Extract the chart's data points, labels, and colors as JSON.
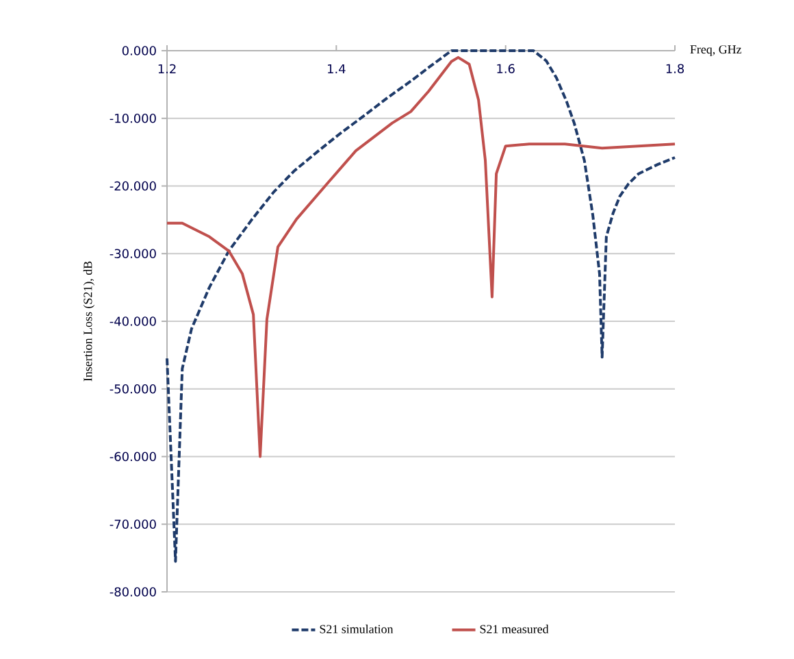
{
  "chart_data": {
    "type": "line",
    "xlabel": "Freq, GHz",
    "ylabel": "Insertion Loss (S21), dB",
    "xlim": [
      1.2,
      1.8
    ],
    "ylim": [
      -80,
      0
    ],
    "xticks": [
      1.2,
      1.4,
      1.6,
      1.8
    ],
    "yticks": [
      {
        "value": -80,
        "label": "-80.000"
      },
      {
        "value": -70,
        "label": "-70.000"
      },
      {
        "value": -60,
        "label": "-60.000"
      },
      {
        "value": -50,
        "label": "-50.000"
      },
      {
        "value": -40,
        "label": "-40.000"
      },
      {
        "value": -30,
        "label": "-30.000"
      },
      {
        "value": -20,
        "label": "-20.000"
      },
      {
        "value": -10,
        "label": "-10.000"
      },
      {
        "value": 0,
        "label": "0.000"
      }
    ],
    "grid": "y",
    "legend": "bottom",
    "marker": "none",
    "series": [
      {
        "name": "S21 simulation",
        "color": "#1f3b6a",
        "line_style": "dashed",
        "x": [
          1.2,
          1.21,
          1.218,
          1.229,
          1.25,
          1.273,
          1.3,
          1.326,
          1.35,
          1.379,
          1.405,
          1.434,
          1.46,
          1.488,
          1.51,
          1.536,
          1.6,
          1.633,
          1.648,
          1.66,
          1.672,
          1.681,
          1.693,
          1.703,
          1.711,
          1.714,
          1.719,
          1.727,
          1.735,
          1.745,
          1.757,
          1.78,
          1.8
        ],
        "values": [
          -45.5,
          -75.5,
          -47,
          -41.1,
          -35,
          -29.6,
          -25,
          -20.9,
          -17.8,
          -14.8,
          -12.2,
          -9.5,
          -7,
          -4.5,
          -2.4,
          0,
          0,
          0,
          -1.5,
          -4,
          -7.5,
          -10.7,
          -16.2,
          -24.3,
          -33,
          -45.3,
          -27.5,
          -24,
          -21.5,
          -19.7,
          -18.2,
          -16.8,
          -15.8
        ]
      },
      {
        "name": "S21 measured",
        "color": "#c0504d",
        "line_style": "solid",
        "x": [
          1.2,
          1.218,
          1.25,
          1.273,
          1.289,
          1.302,
          1.31,
          1.318,
          1.331,
          1.353,
          1.391,
          1.423,
          1.466,
          1.488,
          1.509,
          1.536,
          1.544,
          1.557,
          1.568,
          1.576,
          1.584,
          1.589,
          1.6,
          1.628,
          1.67,
          1.714,
          1.757,
          1.8
        ],
        "values": [
          -25.5,
          -25.5,
          -27.5,
          -29.6,
          -33,
          -39,
          -60,
          -39.7,
          -29,
          -24.9,
          -19.4,
          -14.8,
          -10.7,
          -9,
          -6,
          -1.6,
          -1,
          -2,
          -7.3,
          -16.2,
          -36.4,
          -18.2,
          -14.1,
          -13.8,
          -13.8,
          -14.4,
          -14.1,
          -13.8
        ]
      }
    ]
  }
}
